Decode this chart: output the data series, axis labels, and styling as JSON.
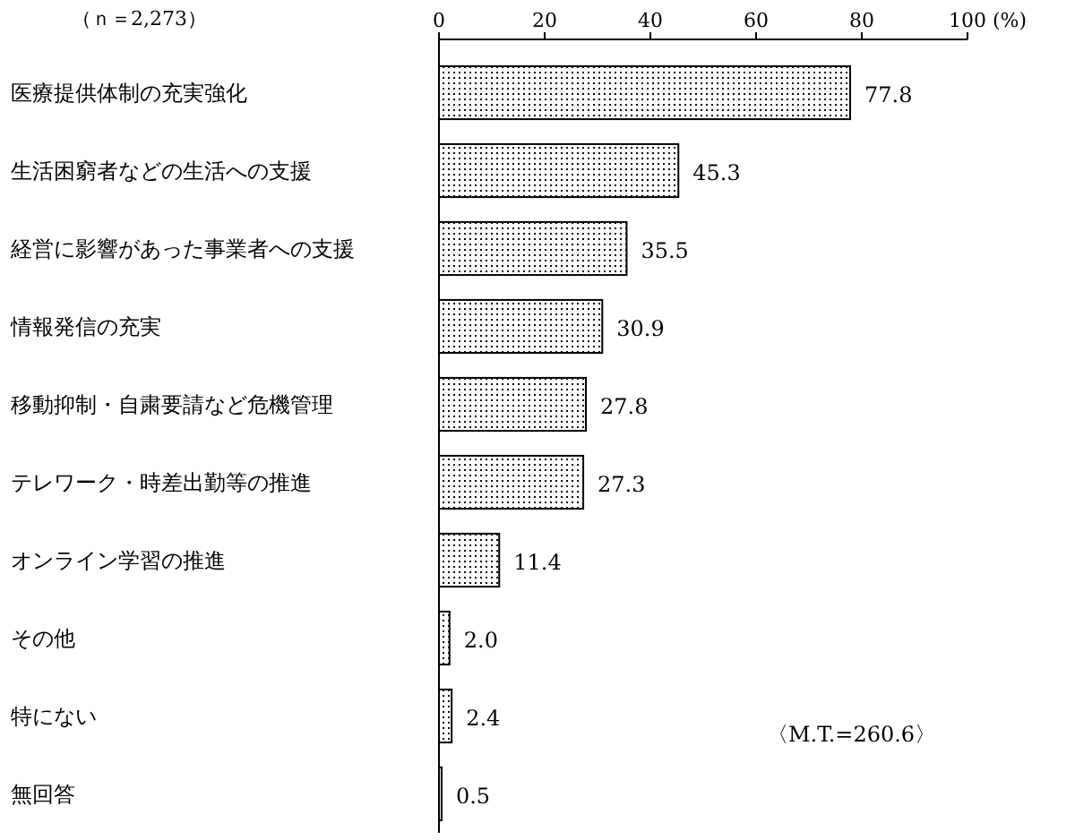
{
  "chart_data": {
    "type": "bar",
    "orientation": "horizontal",
    "categories": [
      "医療提供体制の充実強化",
      "生活困窮者などの生活への支援",
      "経営に影響があった事業者への支援",
      "情報発信の充実",
      "移動抑制・自粛要請など危機管理",
      "テレワーク・時差出勤等の推進",
      "オンライン学習の推進",
      "その他",
      "特にない",
      "無回答"
    ],
    "values": [
      77.8,
      45.3,
      35.5,
      30.9,
      27.8,
      27.3,
      11.4,
      2.0,
      2.4,
      0.5
    ],
    "value_labels": [
      "77.8",
      "45.3",
      "35.5",
      "30.9",
      "27.8",
      "27.3",
      "11.4",
      "2.0",
      "2.4",
      "0.5"
    ],
    "color": "#000000",
    "xlim": [
      0,
      100
    ],
    "xticks": [
      0,
      20,
      40,
      60,
      80,
      100
    ],
    "xlabel": "(%)",
    "annotations": [
      "（ｎ＝2,273）",
      "〈M.T.=260.6〉"
    ],
    "grid": false
  }
}
